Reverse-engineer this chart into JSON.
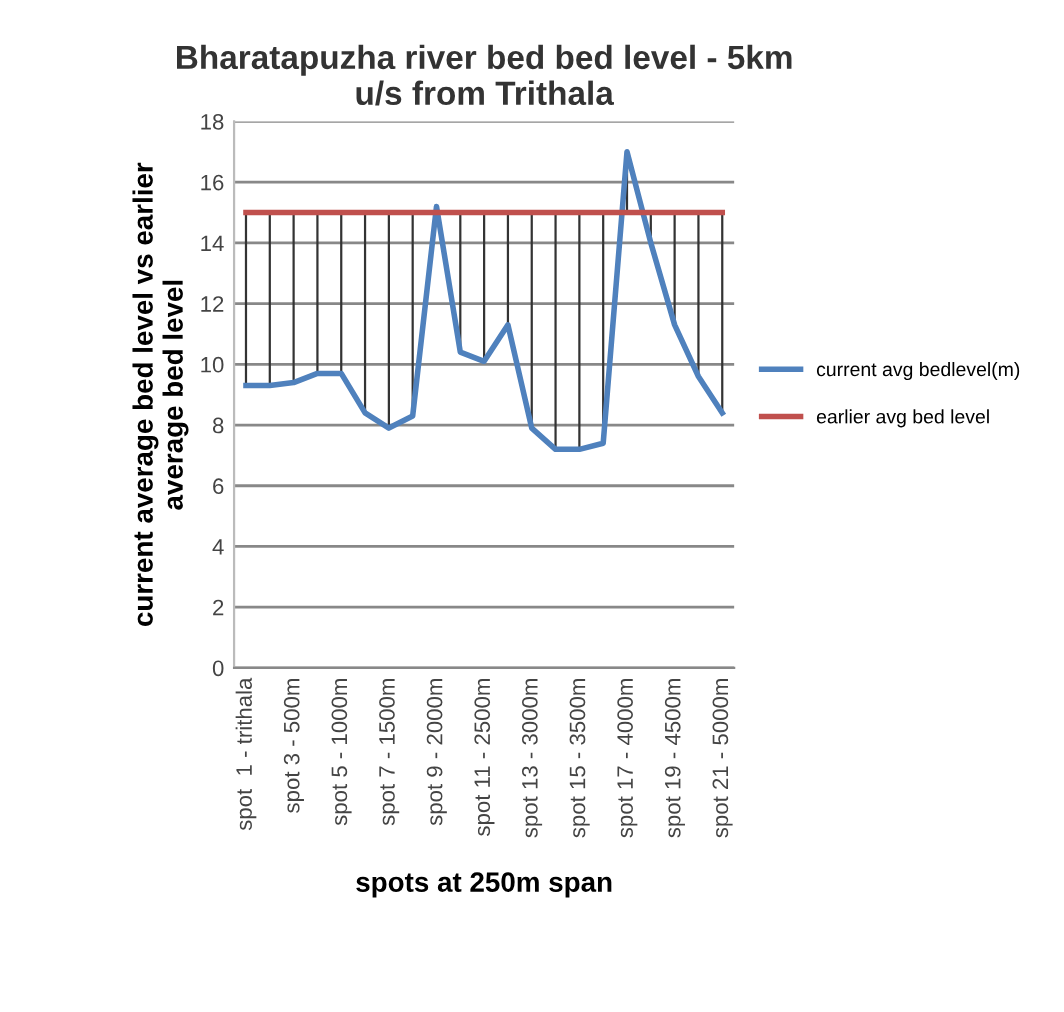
{
  "chart_data": {
    "type": "line",
    "title": "Bharatapuzha river bed bed level - 5km\nu/s from Trithala",
    "xlabel": "spots at 250m span",
    "ylabel": "current average bed level vs earlier\naverage bed level",
    "categories": [
      "spot  1 - trithala",
      null,
      "spot 3 - 500m",
      null,
      "spot 5 - 1000m",
      null,
      "spot 7 - 1500m",
      null,
      "spot 9 - 2000m",
      null,
      "spot 11 - 2500m",
      null,
      "spot 13 - 3000m",
      null,
      "spot 15 - 3500m",
      null,
      "spot 17 - 4000m",
      null,
      "spot 19 - 4500m",
      null,
      "spot 21 - 5000m"
    ],
    "series": [
      {
        "name": "current avg bedlevel(m)",
        "color": "#4f81bd",
        "values": [
          9.3,
          9.3,
          9.4,
          9.7,
          9.7,
          8.4,
          7.9,
          8.3,
          15.2,
          10.4,
          10.1,
          11.3,
          7.9,
          7.2,
          7.2,
          7.4,
          17.0,
          14.0,
          11.3,
          9.6,
          8.4
        ],
        "errors": [
          [
            9.3,
            15
          ],
          [
            9.3,
            15
          ],
          [
            9.4,
            15
          ],
          [
            9.7,
            15
          ],
          [
            9.7,
            15
          ],
          [
            8.4,
            15
          ],
          [
            7.9,
            15
          ],
          [
            8.3,
            15
          ],
          [
            15,
            15.2
          ],
          [
            10.4,
            15
          ],
          [
            10.1,
            15
          ],
          [
            11.3,
            15
          ],
          [
            7.9,
            15
          ],
          [
            7.2,
            15
          ],
          [
            7.2,
            15
          ],
          [
            7.4,
            15
          ],
          [
            15,
            17.0
          ],
          [
            14.0,
            15
          ],
          [
            11.3,
            15
          ],
          [
            9.6,
            15
          ],
          [
            8.4,
            15
          ]
        ]
      },
      {
        "name": "earlier avg bed level",
        "color": "#c0504d",
        "values": [
          15,
          15,
          15,
          15,
          15,
          15,
          15,
          15,
          15,
          15,
          15,
          15,
          15,
          15,
          15,
          15,
          15,
          15,
          15,
          15,
          15
        ]
      }
    ],
    "ylim": [
      0,
      18
    ],
    "yticks": [
      0,
      2,
      4,
      6,
      8,
      10,
      12,
      14,
      16,
      18
    ],
    "grid": "y",
    "legend": "right",
    "marker": "none",
    "line_style": "solid"
  }
}
